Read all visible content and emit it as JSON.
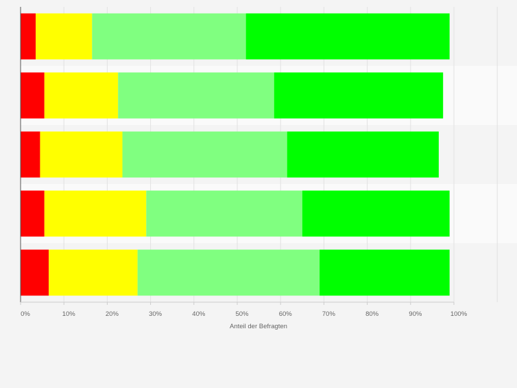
{
  "chart_data": {
    "type": "bar",
    "orientation": "horizontal",
    "stacked": true,
    "title": "",
    "xlabel": "Anteil der Befragten",
    "ylabel": "",
    "xlim": [
      0,
      100
    ],
    "x_ticks": [
      "0%",
      "10%",
      "20%",
      "30%",
      "40%",
      "50%",
      "60%",
      "70%",
      "80%",
      "90%",
      "100%"
    ],
    "grid": true,
    "legend": "none",
    "categories": [
      "",
      "",
      "",
      "",
      ""
    ],
    "series": [
      {
        "color": "#ff0000",
        "values": [
          3.5,
          5.5,
          4.5,
          5.5,
          6.5
        ]
      },
      {
        "color": "#ffff00",
        "values": [
          13,
          17,
          19,
          23.5,
          20.5
        ]
      },
      {
        "color": "#80ff80",
        "values": [
          35.5,
          36,
          38,
          36,
          42
        ]
      },
      {
        "color": "#00ff00",
        "values": [
          47,
          39,
          35,
          34,
          30
        ]
      }
    ]
  }
}
